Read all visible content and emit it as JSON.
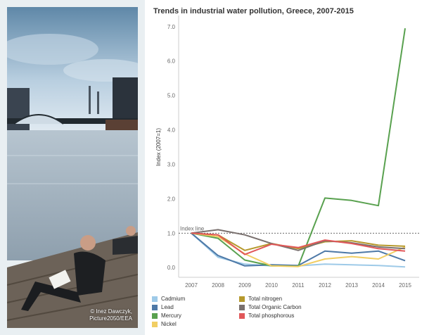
{
  "photo": {
    "credit": "© Inez Dawczyk,\nPicture2050/EEA"
  },
  "chart_data": {
    "type": "line",
    "title": "Trends in industrial water pollution, Greece, 2007-2015",
    "ylabel": "Index (2007=1)",
    "xlabel": "",
    "x": [
      "2007",
      "2008",
      "2009",
      "2010",
      "2011",
      "2012",
      "2013",
      "2014",
      "2015"
    ],
    "ylim": [
      -0.2,
      7.2
    ],
    "yticks": [
      0.0,
      1.0,
      2.0,
      3.0,
      4.0,
      5.0,
      6.0,
      7.0
    ],
    "ytick_labels": [
      "0.0",
      "1.0",
      "2.0",
      "3.0",
      "4.0",
      "5.0",
      "6.0",
      "7.0"
    ],
    "reference_line": {
      "value": 1.0,
      "label": "Index line"
    },
    "grid": false,
    "legend_position": "bottom",
    "series": [
      {
        "name": "Cadmium",
        "color": "#9ecae8",
        "values": [
          1.0,
          0.3,
          0.1,
          0.05,
          0.05,
          0.1,
          0.08,
          0.06,
          0.02
        ]
      },
      {
        "name": "Lead",
        "color": "#4e79a7",
        "values": [
          1.0,
          0.35,
          0.05,
          0.08,
          0.06,
          0.48,
          0.42,
          0.48,
          0.2
        ]
      },
      {
        "name": "Mercury",
        "color": "#59a14f",
        "values": [
          1.0,
          0.85,
          0.22,
          0.05,
          0.04,
          2.02,
          1.95,
          1.8,
          6.95
        ]
      },
      {
        "name": "Nickel",
        "color": "#f1ce63",
        "values": [
          1.0,
          0.9,
          0.4,
          0.05,
          0.03,
          0.25,
          0.32,
          0.25,
          0.6
        ]
      },
      {
        "name": "Total nitrogen",
        "color": "#b6992d",
        "values": [
          1.0,
          0.95,
          0.5,
          0.7,
          0.55,
          0.75,
          0.78,
          0.65,
          0.62
        ]
      },
      {
        "name": "Total Organic Carbon",
        "color": "#79706e",
        "values": [
          1.0,
          1.1,
          0.95,
          0.7,
          0.5,
          0.78,
          0.72,
          0.6,
          0.55
        ]
      },
      {
        "name": "Total phosphorous",
        "color": "#e15759",
        "values": [
          1.0,
          0.95,
          0.38,
          0.68,
          0.58,
          0.8,
          0.7,
          0.55,
          0.48
        ]
      }
    ]
  }
}
